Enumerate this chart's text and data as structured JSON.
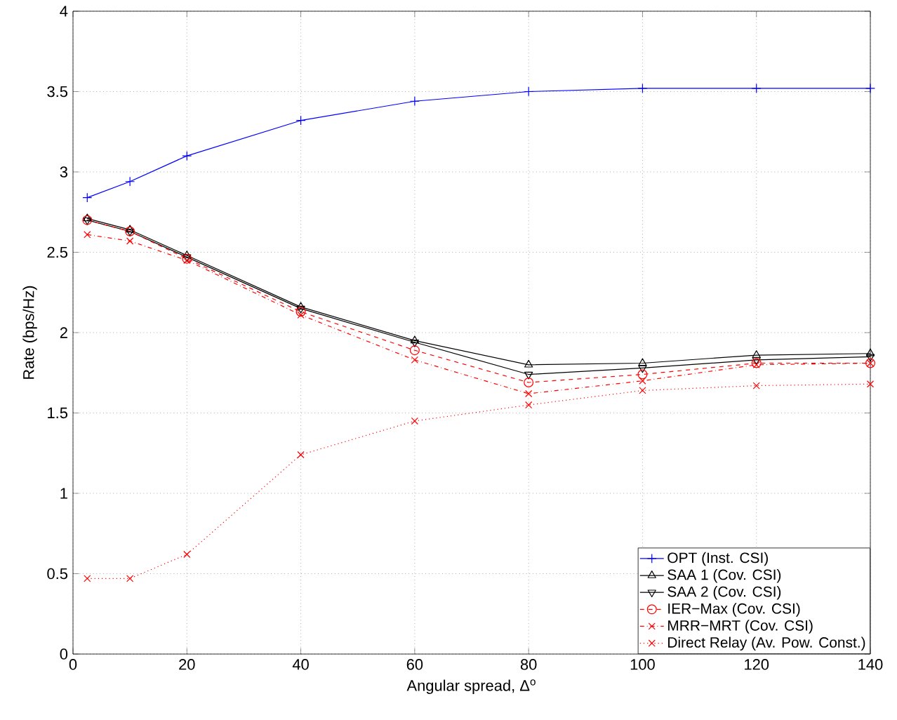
{
  "chart_data": {
    "type": "line",
    "xlabel": "Angular spread, Δ$^{o}$",
    "ylabel": "Rate (bps/Hz)",
    "x": [
      2.5,
      10,
      20,
      40,
      60,
      80,
      100,
      120,
      140
    ],
    "xlim": [
      0,
      140
    ],
    "xticks": [
      0,
      20,
      40,
      60,
      80,
      100,
      120,
      140
    ],
    "ylim": [
      0,
      4
    ],
    "yticks": [
      0,
      0.5,
      1,
      1.5,
      2,
      2.5,
      3,
      3.5,
      4
    ],
    "grid": true,
    "legend": "bottom right",
    "series": [
      {
        "name": "OPT (Inst. CSI)",
        "color": "#0000ff",
        "marker": "plus",
        "line_style": "solid",
        "values": [
          2.84,
          2.94,
          3.1,
          3.32,
          3.44,
          3.5,
          3.52,
          3.52,
          3.52
        ]
      },
      {
        "name": "SAA 1 (Cov. CSI)",
        "color": "#000000",
        "marker": "triangle",
        "line_style": "solid",
        "values": [
          2.71,
          2.64,
          2.48,
          2.16,
          1.95,
          1.8,
          1.81,
          1.86,
          1.87
        ]
      },
      {
        "name": "SAA 2 (Cov. CSI)",
        "color": "#000000",
        "marker": "triangle-down",
        "line_style": "solid",
        "values": [
          2.7,
          2.63,
          2.47,
          2.15,
          1.94,
          1.74,
          1.78,
          1.83,
          1.85
        ]
      },
      {
        "name": "IER−Max (Cov. CSI)",
        "color": "#ff0000",
        "marker": "circle",
        "line_style": "dashed",
        "values": [
          2.7,
          2.63,
          2.46,
          2.13,
          1.89,
          1.69,
          1.74,
          1.81,
          1.81
        ]
      },
      {
        "name": "MRR−MRT (Cov. CSI)",
        "color": "#ff0000",
        "marker": "cross",
        "line_style": "dashdot",
        "values": [
          2.61,
          2.57,
          2.45,
          2.11,
          1.83,
          1.62,
          1.7,
          1.8,
          1.81
        ]
      },
      {
        "name": "Direct Relay (Av. Pow. Const.)",
        "color": "#ff0000",
        "marker": "cross",
        "line_style": "dotted",
        "values": [
          0.47,
          0.47,
          0.62,
          1.24,
          1.45,
          1.55,
          1.64,
          1.67,
          1.68
        ]
      }
    ]
  }
}
